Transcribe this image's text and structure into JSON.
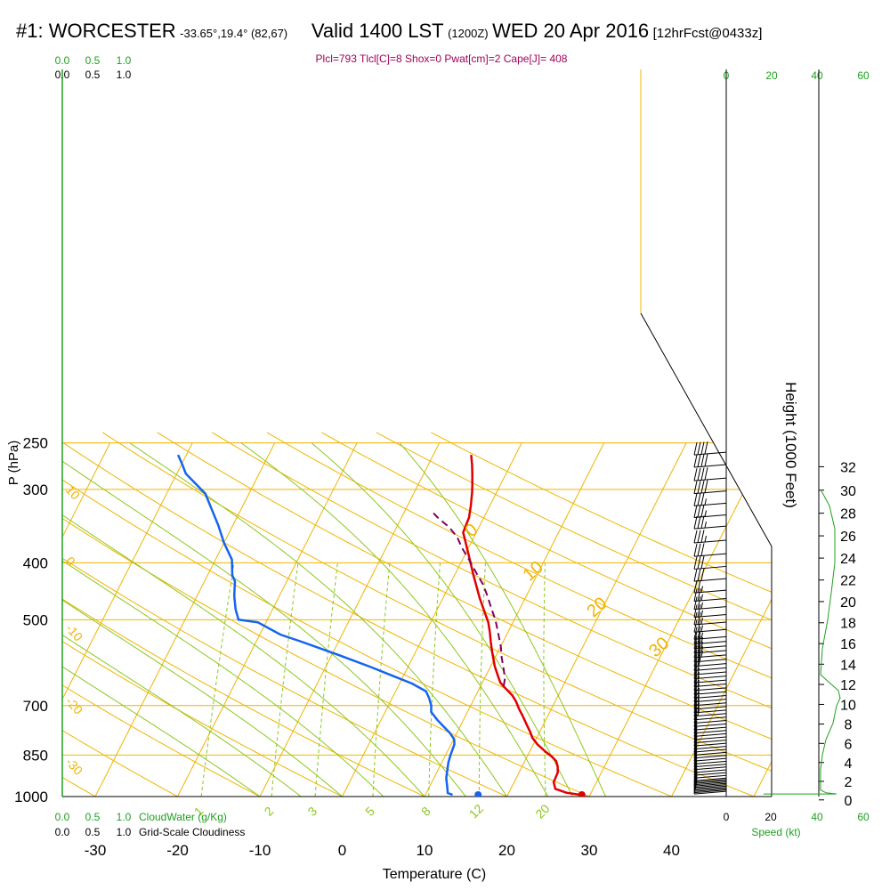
{
  "header": {
    "station": "#1: WORCESTER",
    "coords": "-33.65°,19.4° (82,67)",
    "valid": "Valid 1400 LST",
    "utc": "(1200Z)",
    "date": "WED 20 Apr 2016",
    "forecast": "[12hrFcst@0433z]"
  },
  "indices": "Plcl=793 Tlcl[C]=8 Shox=0 Pwat[cm]=2 Cape[J]= 408",
  "colors": {
    "temperature": "#e00000",
    "dewpoint": "#1464f0",
    "parcel": "#800060",
    "isotherm": "#f0b400",
    "dry_adiabat": "#f0b400",
    "moist_adiabat": "#8cc81e",
    "mixing_ratio": "#8cc81e",
    "cloud_scale": "#1fa01f",
    "indices_text": "#a0005a"
  },
  "cloud_scale": {
    "top_green": [
      "0.0",
      "0.5",
      "1.0"
    ],
    "top_black": [
      "0.0",
      "0.5",
      "1.0"
    ],
    "bottom_green": [
      "0.0",
      "0.5",
      "1.0"
    ],
    "bottom_black": [
      "0.0",
      "0.5",
      "1.0"
    ],
    "cloudwater_label": "CloudWater (g/Kg)",
    "cloudiness_label": "Grid-Scale Cloudiness"
  },
  "speed_axis": {
    "ticks_black": [
      "0",
      "20"
    ],
    "ticks_green": [
      "20",
      "40",
      "60"
    ],
    "top_ticks_green": [
      "0",
      "20",
      "40",
      "60"
    ],
    "label": "Speed (kt)"
  },
  "chart_data": {
    "type": "line",
    "title": "Skew-T log-P",
    "xlabel": "Temperature (C)",
    "ylabel": "P (hPa)",
    "y2label": "Height (1000 Feet)",
    "xlim": [
      -33,
      41
    ],
    "ylim": [
      1000,
      250
    ],
    "x_ticks": [
      -30,
      -20,
      -10,
      0,
      10,
      20,
      30,
      40
    ],
    "p_ticks": [
      1000,
      850,
      700,
      500,
      400,
      300,
      250
    ],
    "height_ticks": [
      0,
      2,
      4,
      6,
      8,
      10,
      12,
      14,
      16,
      18,
      20,
      22,
      24,
      26,
      28,
      30,
      32
    ],
    "isotherm_labels": [
      {
        "text": "0",
        "t": 0,
        "p": 358
      },
      {
        "text": "10",
        "t": 10,
        "p": 420
      },
      {
        "text": "20",
        "t": 20,
        "p": 484
      },
      {
        "text": "30",
        "t": 30,
        "p": 566
      }
    ],
    "dry_adiabat_labels": [
      {
        "text": "10",
        "p": 301
      },
      {
        "text": "0",
        "p": 398
      },
      {
        "text": "-10",
        "p": 518
      },
      {
        "text": "-20",
        "p": 690
      },
      {
        "text": "-30",
        "p": 875
      }
    ],
    "mixing_ratio_labels": [
      "1",
      "2",
      "3",
      "5",
      "8",
      "12",
      "20"
    ],
    "mixing_ratios": [
      1,
      2,
      3,
      5,
      8,
      12,
      20
    ],
    "dry_adiabats": [
      -50,
      -40,
      -30,
      -20,
      -10,
      0,
      10,
      20,
      30,
      40,
      50,
      60,
      70,
      80,
      90,
      100,
      110,
      120
    ],
    "moist_adiabats": [
      -10,
      -5,
      0,
      5,
      10,
      15,
      20,
      25,
      28,
      32
    ],
    "series": [
      {
        "name": "Temperature",
        "points": [
          [
            28.8,
            993
          ],
          [
            27,
            985
          ],
          [
            25.4,
            970
          ],
          [
            24.8,
            945
          ],
          [
            24.7,
            910
          ],
          [
            24.3,
            888
          ],
          [
            23.8,
            870
          ],
          [
            23.0,
            855
          ],
          [
            22.0,
            840
          ],
          [
            20.5,
            815
          ],
          [
            19.5,
            795
          ],
          [
            18.8,
            775
          ],
          [
            18.0,
            755
          ],
          [
            17.0,
            730
          ],
          [
            16.1,
            710
          ],
          [
            15.3,
            690
          ],
          [
            14.4,
            672
          ],
          [
            13.2,
            655
          ],
          [
            12.2,
            640
          ],
          [
            11.6,
            626
          ],
          [
            10.5,
            600
          ],
          [
            9.4,
            570
          ],
          [
            8.5,
            545
          ],
          [
            7.8,
            525
          ],
          [
            7.0,
            505
          ],
          [
            4.5,
            460
          ],
          [
            2.3,
            420
          ],
          [
            0.3,
            385
          ],
          [
            -1.6,
            355
          ],
          [
            -1.8,
            335
          ],
          [
            -2.3,
            320
          ],
          [
            -3.0,
            303
          ],
          [
            -3.4,
            295
          ],
          [
            -4.1,
            282
          ],
          [
            -4.7,
            272
          ],
          [
            -5.4,
            262
          ]
        ]
      },
      {
        "name": "Dewpoint",
        "points": [
          [
            13.3,
            993
          ],
          [
            12.6,
            986
          ],
          [
            12.3,
            970
          ],
          [
            11.5,
            930
          ],
          [
            10.8,
            875
          ],
          [
            10.6,
            850
          ],
          [
            10.4,
            815
          ],
          [
            10.1,
            800
          ],
          [
            9.2,
            780
          ],
          [
            8.0,
            760
          ],
          [
            6.8,
            740
          ],
          [
            5.6,
            718
          ],
          [
            5.2,
            700
          ],
          [
            4.5,
            680
          ],
          [
            3.7,
            662
          ],
          [
            1.5,
            642
          ],
          [
            -1.0,
            625
          ],
          [
            -4.5,
            602
          ],
          [
            -9.0,
            575
          ],
          [
            -14.5,
            545
          ],
          [
            -17.5,
            530
          ],
          [
            -21.0,
            505
          ],
          [
            -23.5,
            500
          ],
          [
            -24.5,
            480
          ],
          [
            -25.5,
            455
          ],
          [
            -26.3,
            430
          ],
          [
            -27.0,
            420
          ],
          [
            -28.0,
            395
          ],
          [
            -30.0,
            370
          ],
          [
            -31.8,
            345
          ],
          [
            -33.5,
            325
          ],
          [
            -35.3,
            305
          ],
          [
            -37.3,
            292
          ],
          [
            -38.9,
            282
          ],
          [
            -39.9,
            272
          ],
          [
            -41.0,
            262
          ]
        ]
      },
      {
        "name": "Parcel",
        "points": [
          [
            12.8,
            648
          ],
          [
            12.5,
            630
          ],
          [
            11.7,
            605
          ],
          [
            10.8,
            580
          ],
          [
            10.0,
            555
          ],
          [
            9.2,
            535
          ],
          [
            8.5,
            518
          ],
          [
            7.7,
            500
          ],
          [
            6.5,
            478
          ],
          [
            5.3,
            456
          ],
          [
            4.0,
            435
          ],
          [
            2.4,
            415
          ],
          [
            0.8,
            395
          ],
          [
            -0.8,
            377
          ],
          [
            -2.0,
            362
          ],
          [
            -3.6,
            348
          ],
          [
            -5.6,
            335
          ],
          [
            -6.7,
            327
          ]
        ]
      }
    ],
    "surface_points": [
      {
        "name": "Temperature",
        "t": 29.0,
        "p": 993
      },
      {
        "name": "Dewpoint",
        "t": 16.4,
        "p": 993
      }
    ],
    "moisture_profile": [
      [
        0.5,
        990
      ],
      [
        0.2,
        985
      ],
      [
        0.05,
        975
      ],
      [
        0.05,
        900
      ],
      [
        0.1,
        850
      ],
      [
        0.2,
        800
      ],
      [
        0.4,
        750
      ],
      [
        0.5,
        700
      ],
      [
        0.6,
        680
      ],
      [
        0.55,
        660
      ],
      [
        0.3,
        640
      ],
      [
        0.05,
        620
      ],
      [
        0.1,
        560
      ],
      [
        0.25,
        500
      ],
      [
        0.35,
        450
      ],
      [
        0.45,
        400
      ],
      [
        0.45,
        350
      ],
      [
        0.3,
        320
      ],
      [
        0.05,
        300
      ]
    ],
    "wind_barbs": {
      "levels": [
        990,
        985,
        980,
        975,
        970,
        965,
        960,
        955,
        950,
        945,
        940,
        930,
        920,
        910,
        900,
        890,
        880,
        870,
        860,
        850,
        840,
        830,
        820,
        810,
        800,
        790,
        780,
        770,
        760,
        750,
        740,
        730,
        720,
        710,
        700,
        690,
        680,
        670,
        660,
        650,
        640,
        630,
        620,
        610,
        600,
        590,
        580,
        570,
        560,
        550,
        540,
        525,
        510,
        495,
        480,
        465,
        450,
        430,
        410,
        390,
        370,
        350,
        335,
        320,
        305,
        290,
        275,
        262
      ],
      "speeds_kt": [
        10,
        10,
        10,
        10,
        10,
        10,
        10,
        10,
        10,
        10,
        10,
        10,
        10,
        10,
        10,
        10,
        10,
        10,
        10,
        10,
        10,
        10,
        10,
        10,
        10,
        10,
        10,
        10,
        10,
        10,
        10,
        15,
        15,
        15,
        15,
        15,
        15,
        15,
        15,
        15,
        15,
        15,
        15,
        20,
        20,
        20,
        25,
        25,
        25,
        25,
        25,
        25,
        25,
        25,
        25,
        25,
        25,
        30,
        30,
        30,
        35,
        35,
        35,
        35,
        40,
        40,
        40,
        40
      ],
      "direction": "westerly"
    }
  }
}
